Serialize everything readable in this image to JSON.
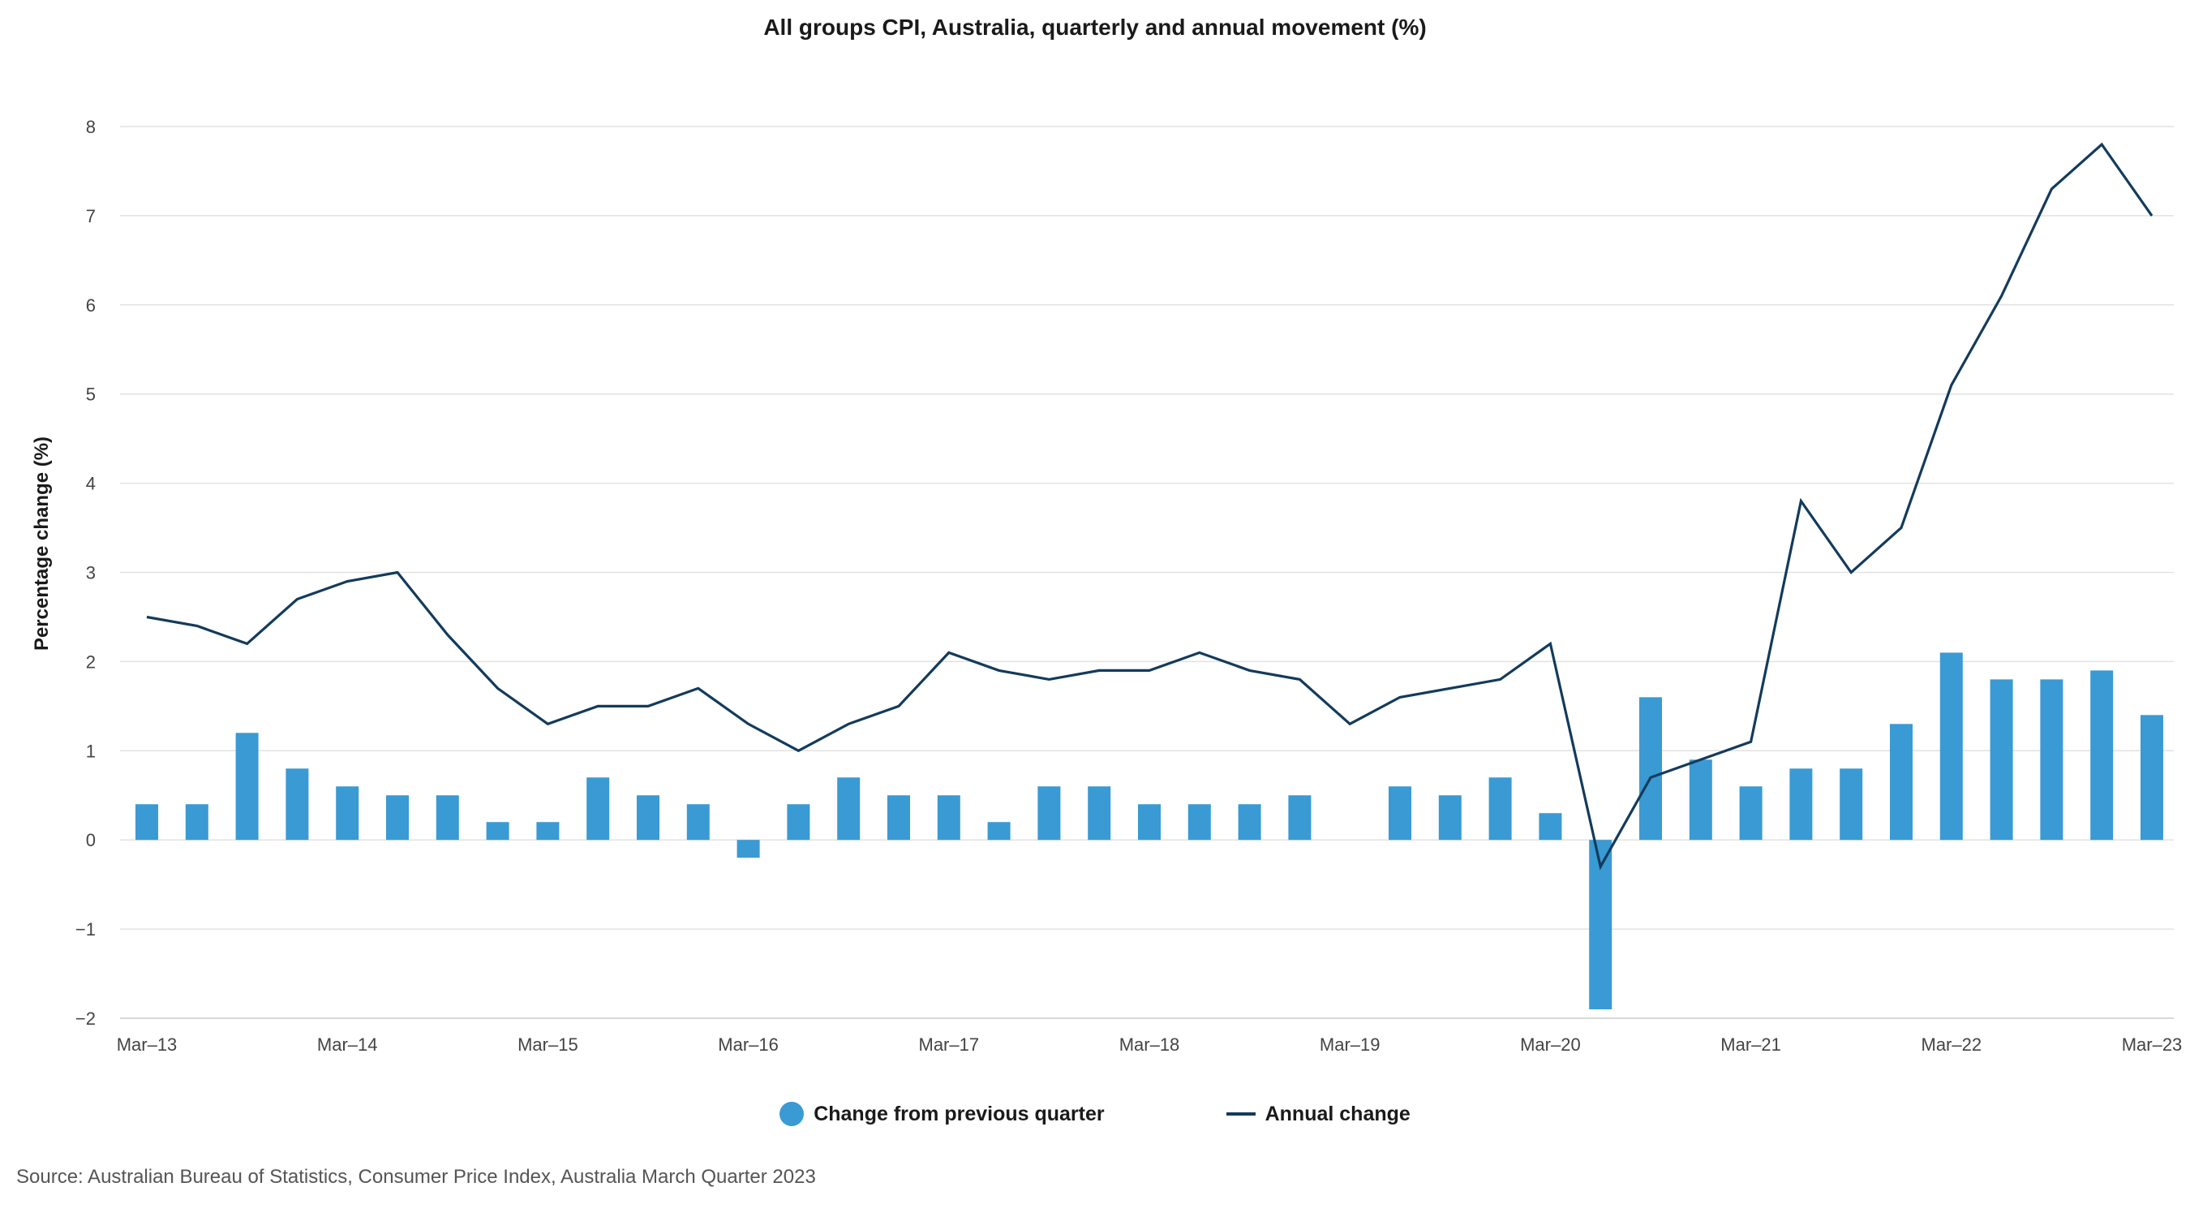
{
  "chart_data": {
    "type": "bar+line",
    "title": "All groups CPI, Australia, quarterly and annual movement (%)",
    "xlabel": "",
    "ylabel": "Percentage change (%)",
    "ylim": [
      -2,
      8
    ],
    "yticks": [
      8,
      7,
      6,
      5,
      4,
      3,
      2,
      1,
      0,
      -1,
      -2
    ],
    "ytick_labels": [
      "8",
      "7",
      "6",
      "5",
      "4",
      "3",
      "2",
      "1",
      "0",
      "−1",
      "−2"
    ],
    "xtick_labels": [
      "Mar–13",
      "Mar–14",
      "Mar–15",
      "Mar–16",
      "Mar–17",
      "Mar–18",
      "Mar–19",
      "Mar–20",
      "Mar–21",
      "Mar–22",
      "Mar–23"
    ],
    "xtick_every": 4,
    "categories": [
      "Mar-13",
      "Jun-13",
      "Sep-13",
      "Dec-13",
      "Mar-14",
      "Jun-14",
      "Sep-14",
      "Dec-14",
      "Mar-15",
      "Jun-15",
      "Sep-15",
      "Dec-15",
      "Mar-16",
      "Jun-16",
      "Sep-16",
      "Dec-16",
      "Mar-17",
      "Jun-17",
      "Sep-17",
      "Dec-17",
      "Mar-18",
      "Jun-18",
      "Sep-18",
      "Dec-18",
      "Mar-19",
      "Jun-19",
      "Sep-19",
      "Dec-19",
      "Mar-20",
      "Jun-20",
      "Sep-20",
      "Dec-20",
      "Mar-21",
      "Jun-21",
      "Sep-21",
      "Dec-21",
      "Mar-22",
      "Jun-22",
      "Sep-22",
      "Dec-22",
      "Mar-23"
    ],
    "series": [
      {
        "name": "Change from previous quarter",
        "kind": "bar",
        "color": "#3a9ad3",
        "values": [
          0.4,
          0.4,
          1.2,
          0.8,
          0.6,
          0.5,
          0.5,
          0.2,
          0.2,
          0.7,
          0.5,
          0.4,
          -0.2,
          0.4,
          0.7,
          0.5,
          0.5,
          0.2,
          0.6,
          0.6,
          0.4,
          0.4,
          0.4,
          0.5,
          0.0,
          0.6,
          0.5,
          0.7,
          0.3,
          -1.9,
          1.6,
          0.9,
          0.6,
          0.8,
          0.8,
          1.3,
          2.1,
          1.8,
          1.8,
          1.9,
          1.4
        ]
      },
      {
        "name": "Annual change",
        "kind": "line",
        "color": "#133b5c",
        "values": [
          2.5,
          2.4,
          2.2,
          2.7,
          2.9,
          3.0,
          2.3,
          1.7,
          1.3,
          1.5,
          1.5,
          1.7,
          1.3,
          1.0,
          1.3,
          1.5,
          2.1,
          1.9,
          1.8,
          1.9,
          1.9,
          2.1,
          1.9,
          1.8,
          1.3,
          1.6,
          1.7,
          1.8,
          2.2,
          -0.3,
          0.7,
          0.9,
          1.1,
          3.8,
          3.0,
          3.5,
          5.1,
          6.1,
          7.3,
          7.8,
          7.0
        ]
      }
    ],
    "grid": true,
    "legend": "bottom-center"
  },
  "legend": {
    "bar_label": "Change from previous quarter",
    "line_label": "Annual change"
  },
  "source": "Source: Australian Bureau of Statistics, Consumer Price Index, Australia March Quarter 2023",
  "colors": {
    "bar": "#3a9ad3",
    "line": "#133b5c",
    "grid": "#e2e2e2"
  }
}
